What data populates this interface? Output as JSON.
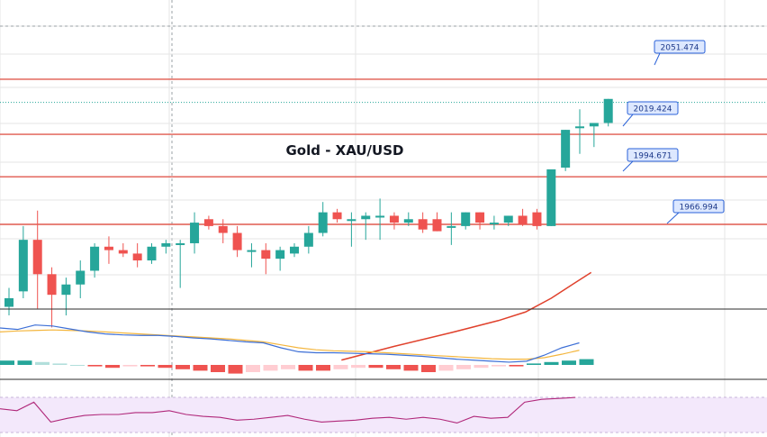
{
  "chart_data": {
    "type": "candlestick",
    "title": "Gold - XAU/USD",
    "levels": [
      {
        "label": "2051.474",
        "value": 2051.474,
        "kind": "resistance"
      },
      {
        "label": "2019.424",
        "value": 2019.424,
        "kind": "support"
      },
      {
        "label": "1994.671",
        "value": 1994.671,
        "kind": "support"
      },
      {
        "label": "1966.994",
        "value": 1966.994,
        "kind": "support"
      }
    ],
    "current_price_dotted": 2038,
    "ylim": [
      1905,
      2090
    ],
    "candles": [
      [
        1919,
        1930,
        1914,
        1924
      ],
      [
        1928,
        1966,
        1924,
        1958
      ],
      [
        1958,
        1975,
        1918,
        1938
      ],
      [
        1938,
        1942,
        1907,
        1926
      ],
      [
        1926,
        1936,
        1914,
        1932
      ],
      [
        1932,
        1946,
        1924,
        1940
      ],
      [
        1940,
        1956,
        1936,
        1954
      ],
      [
        1954,
        1960,
        1944,
        1952
      ],
      [
        1952,
        1956,
        1948,
        1950
      ],
      [
        1950,
        1956,
        1942,
        1946
      ],
      [
        1946,
        1956,
        1944,
        1954
      ],
      [
        1954,
        1958,
        1950,
        1956
      ],
      [
        1956,
        1958,
        1930,
        1956
      ],
      [
        1956,
        1974,
        1950,
        1968
      ],
      [
        1970,
        1972,
        1964,
        1966
      ],
      [
        1966,
        1970,
        1956,
        1962
      ],
      [
        1962,
        1966,
        1948,
        1952
      ],
      [
        1952,
        1956,
        1942,
        1952
      ],
      [
        1952,
        1956,
        1938,
        1947
      ],
      [
        1947,
        1954,
        1940,
        1952
      ],
      [
        1950,
        1956,
        1948,
        1954
      ],
      [
        1954,
        1966,
        1950,
        1962
      ],
      [
        1962,
        1980,
        1960,
        1974
      ],
      [
        1974,
        1976,
        1968,
        1970
      ],
      [
        1970,
        1974,
        1954,
        1970
      ],
      [
        1970,
        1974,
        1958,
        1972
      ],
      [
        1972,
        1982,
        1958,
        1972
      ],
      [
        1972,
        1974,
        1964,
        1968
      ],
      [
        1968,
        1974,
        1966,
        1970
      ],
      [
        1970,
        1974,
        1962,
        1964
      ],
      [
        1970,
        1974,
        1963,
        1963
      ],
      [
        1966,
        1974,
        1955,
        1966
      ],
      [
        1966,
        1974,
        1964,
        1974
      ],
      [
        1974,
        1974,
        1964,
        1968
      ],
      [
        1968,
        1972,
        1964,
        1968
      ],
      [
        1968,
        1972,
        1966,
        1972
      ],
      [
        1972,
        1976,
        1966,
        1967
      ],
      [
        1974,
        1976,
        1964,
        1966
      ],
      [
        1966,
        1998,
        1966,
        1999
      ],
      [
        2000,
        2022,
        1998,
        2022
      ],
      [
        2024,
        2034,
        2008,
        2024
      ],
      [
        2024,
        2026,
        2012,
        2026
      ],
      [
        2026,
        2040,
        2024,
        2040
      ]
    ],
    "moving_average": [
      {
        "i": 23.3,
        "v": 1888
      },
      {
        "i": 27,
        "v": 1896
      },
      {
        "i": 31,
        "v": 1904
      },
      {
        "i": 34.3,
        "v": 1911
      },
      {
        "i": 36.2,
        "v": 1916
      },
      {
        "i": 38,
        "v": 1924
      },
      {
        "i": 39.3,
        "v": 1931
      },
      {
        "i": 40.8,
        "v": 1939
      }
    ],
    "macd": {
      "line_blue": [
        20,
        17,
        26,
        24,
        18,
        12,
        8,
        6,
        5,
        5,
        3,
        0,
        -2,
        -5,
        -8,
        -10,
        -20,
        -28,
        -30,
        -30,
        -31,
        -32,
        -33,
        -35,
        -37,
        -40,
        -43,
        -45,
        -47,
        -49,
        -47,
        -35,
        -20,
        -10
      ],
      "line_orange": [
        12,
        14,
        15,
        16,
        15,
        14,
        12,
        10,
        8,
        6,
        4,
        2,
        0,
        -2,
        -5,
        -8,
        -14,
        -20,
        -24,
        -26,
        -27,
        -28,
        -30,
        -32,
        -34,
        -36,
        -38,
        -40,
        -42,
        -43,
        -43,
        -40,
        -33,
        -25
      ],
      "histogram": [
        3,
        3,
        2,
        1,
        0,
        -1,
        -2,
        -1,
        -1,
        -2,
        -3,
        -4,
        -5,
        -6,
        -5,
        -4,
        -3,
        -4,
        -4,
        -3,
        -2,
        -2,
        -3,
        -4,
        -5,
        -4,
        -3,
        -2,
        -1,
        -1,
        1,
        2,
        3,
        4
      ]
    },
    "rsi": [
      56,
      54,
      63,
      42,
      46,
      49,
      50,
      50,
      52,
      52,
      54,
      50,
      48,
      47,
      44,
      45,
      47,
      49,
      45,
      42,
      43,
      44,
      46,
      47,
      45,
      47,
      45,
      41,
      48,
      46,
      47,
      63,
      66,
      67,
      68
    ]
  },
  "colors": {
    "bull": "#26a69a",
    "bear": "#ef5350",
    "level_line": "#e05a4f",
    "ma": "#e0412c",
    "macd_blue": "#3d6fd6",
    "macd_orange": "#f4b63e",
    "rsi_line": "#b0287a",
    "rsi_band": "#f3e8fb",
    "callout_fill": "#dde8ff",
    "callout_stroke": "#2a62d8",
    "grid": "#e6e6e6"
  }
}
